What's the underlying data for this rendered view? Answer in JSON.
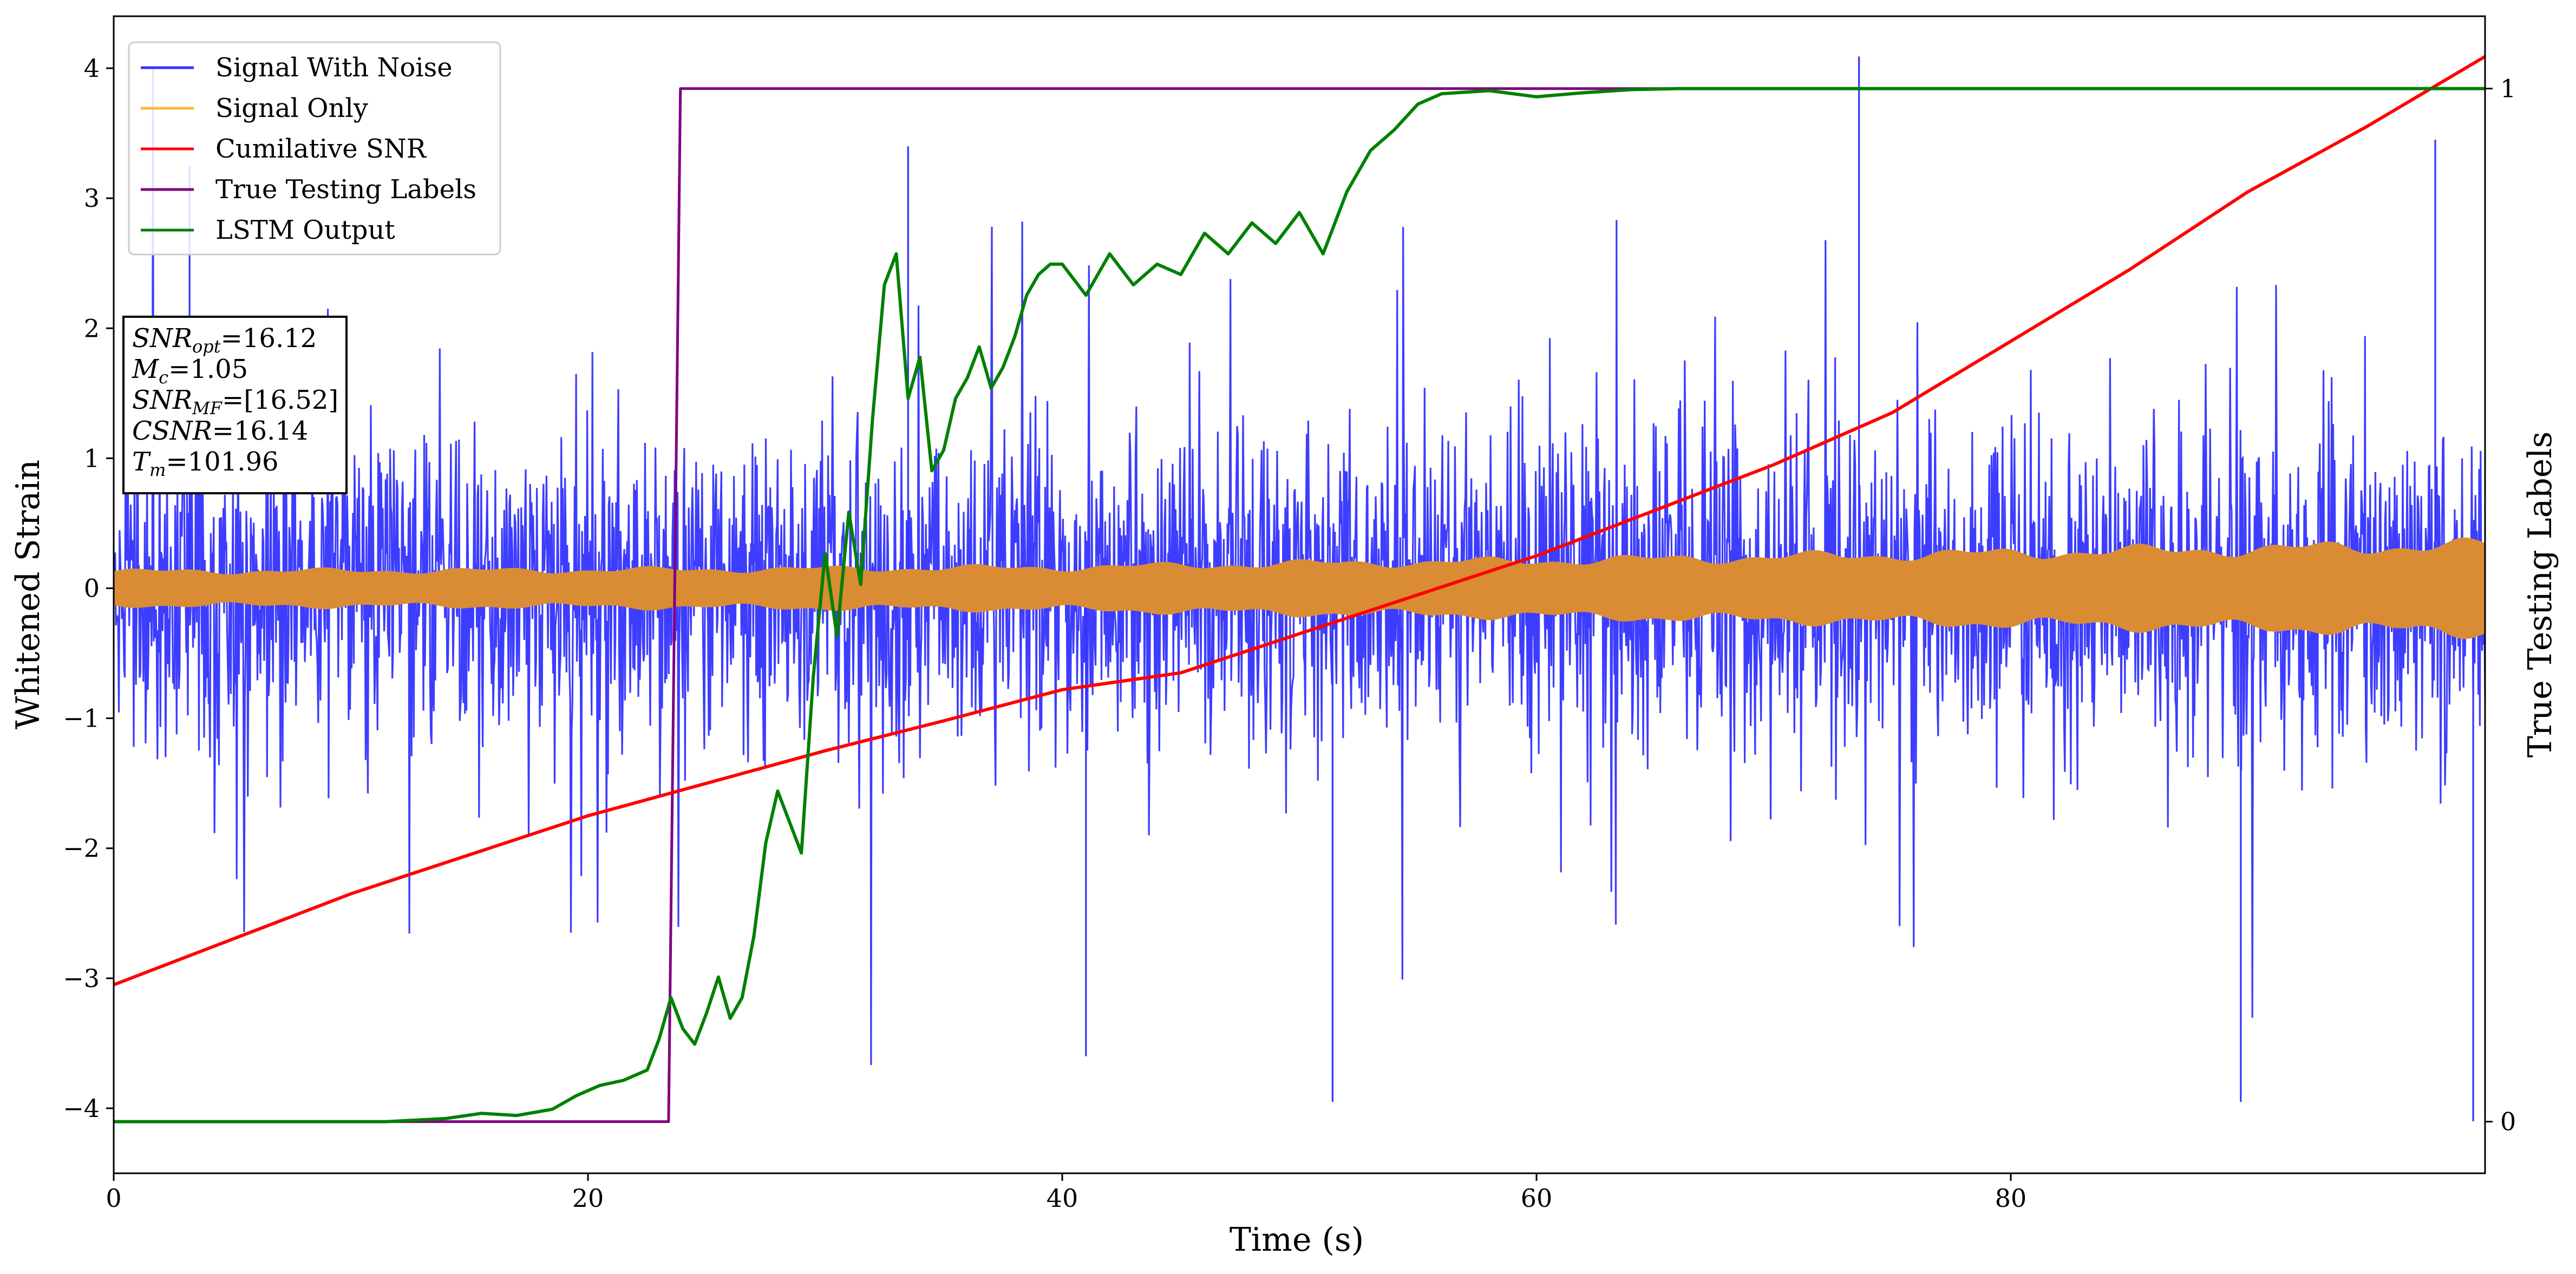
{
  "chart_data": {
    "type": "line",
    "xlabel": "Time (s)",
    "ylabel": "Whitened Strain",
    "ylabel_right": "True Testing Labels",
    "xlim": [
      0,
      100
    ],
    "ylim": [
      -4.5,
      4.4
    ],
    "ylim_right": [
      -0.05,
      1.07
    ],
    "x_ticks": [
      0,
      20,
      40,
      60,
      80
    ],
    "y_ticks": [
      -4,
      -3,
      -2,
      -1,
      0,
      1,
      2,
      3,
      4
    ],
    "y_tick_labels": [
      "−4",
      "−3",
      "−2",
      "−1",
      "0",
      "1",
      "2",
      "3",
      "4"
    ],
    "y_right_ticks": [
      0,
      1
    ],
    "legend": {
      "placement": "top-left",
      "entries": [
        {
          "label": "Signal With Noise",
          "color": "#3333ff"
        },
        {
          "label": "Signal Only",
          "color": "#ffb733"
        },
        {
          "label": "Cumilative SNR",
          "color": "#ff0000"
        },
        {
          "label": "True Testing Labels",
          "color": "#800080"
        },
        {
          "label": "LSTM Output",
          "color": "#008000"
        }
      ]
    },
    "annotation": {
      "lines": [
        {
          "base": "SNR",
          "sub": "opt",
          "rest": "=16.12"
        },
        {
          "base": "M",
          "sub": "c",
          "rest": "=1.05"
        },
        {
          "base": "SNR",
          "sub": "MF",
          "rest": "=[16.52]"
        },
        {
          "base": "CSNR",
          "sub": "",
          "rest": "=16.14"
        },
        {
          "base": "T",
          "sub": "m",
          "rest": "=101.96"
        }
      ]
    },
    "series": [
      {
        "name": "Signal With Noise",
        "axis": "left",
        "color": "#3333ff",
        "style": "dense_noise",
        "typical_range": [
          -1.3,
          1.3
        ],
        "extremes": [
          -3.95,
          4.09
        ],
        "spikes": [
          {
            "x": 73.6,
            "y": 4.09
          },
          {
            "x": 3.2,
            "y": 3.25
          },
          {
            "x": 41.0,
            "y": -3.6
          },
          {
            "x": 51.4,
            "y": -3.95
          },
          {
            "x": 89.7,
            "y": -3.95
          },
          {
            "x": 99.5,
            "y": -4.1
          },
          {
            "x": 33.5,
            "y": 3.4
          },
          {
            "x": 97.9,
            "y": 3.45
          }
        ]
      },
      {
        "name": "Signal Only",
        "axis": "left",
        "color": "#d98c33",
        "style": "band",
        "envelope_x": [
          0,
          20,
          40,
          50,
          60,
          70,
          80,
          90,
          100
        ],
        "envelope": [
          0.13,
          0.14,
          0.16,
          0.19,
          0.21,
          0.24,
          0.27,
          0.3,
          0.33
        ]
      },
      {
        "name": "Cumilative SNR",
        "axis": "left",
        "color": "#ff0000",
        "x": [
          0,
          10,
          20,
          25,
          30,
          35,
          40,
          45,
          50,
          55,
          60,
          65,
          70,
          75,
          80,
          85,
          90,
          95,
          100
        ],
        "y": [
          -3.05,
          -2.35,
          -1.75,
          -1.5,
          -1.25,
          -1.02,
          -0.78,
          -0.65,
          -0.35,
          -0.05,
          0.25,
          0.6,
          0.95,
          1.35,
          1.9,
          2.45,
          3.05,
          3.55,
          4.09
        ]
      },
      {
        "name": "True Testing Labels",
        "axis": "right",
        "color": "#800080",
        "x": [
          0,
          23.4,
          23.9,
          100
        ],
        "y": [
          0,
          0,
          1,
          1
        ]
      },
      {
        "name": "LSTM Output",
        "axis": "right",
        "color": "#008000",
        "x": [
          0,
          11.5,
          14,
          15.5,
          17,
          18.5,
          19.5,
          20.5,
          21.5,
          22.5,
          23.0,
          23.5,
          24.0,
          24.5,
          25.0,
          25.5,
          26.0,
          26.5,
          27.0,
          27.5,
          28.0,
          28.5,
          29.0,
          29.5,
          30.0,
          30.5,
          31.0,
          31.5,
          32.0,
          32.5,
          33.0,
          33.5,
          34.0,
          34.5,
          35.0,
          35.5,
          36.0,
          36.5,
          37.0,
          37.5,
          38.0,
          38.5,
          39.0,
          39.5,
          40.0,
          41.0,
          42.0,
          43.0,
          44.0,
          45.0,
          46.0,
          47.0,
          48.0,
          49.0,
          50.0,
          51.0,
          52.0,
          53.0,
          54.0,
          55.0,
          56.0,
          58.0,
          60.0,
          62.0,
          64.0,
          66.0,
          68.0,
          70.0,
          75.0,
          80.0,
          90.0,
          100.0
        ],
        "y": [
          0.0,
          0.0,
          0.003,
          0.008,
          0.006,
          0.012,
          0.025,
          0.035,
          0.04,
          0.05,
          0.08,
          0.12,
          0.09,
          0.075,
          0.105,
          0.14,
          0.1,
          0.12,
          0.18,
          0.27,
          0.32,
          0.29,
          0.26,
          0.43,
          0.55,
          0.47,
          0.59,
          0.52,
          0.68,
          0.81,
          0.84,
          0.7,
          0.74,
          0.63,
          0.65,
          0.7,
          0.72,
          0.75,
          0.71,
          0.73,
          0.76,
          0.8,
          0.82,
          0.83,
          0.83,
          0.8,
          0.84,
          0.81,
          0.83,
          0.82,
          0.86,
          0.84,
          0.87,
          0.85,
          0.88,
          0.84,
          0.9,
          0.94,
          0.96,
          0.985,
          0.995,
          0.998,
          0.992,
          0.996,
          0.999,
          1.0,
          1.0,
          1.0,
          1.0,
          1.0,
          1.0,
          1.0
        ]
      }
    ]
  }
}
